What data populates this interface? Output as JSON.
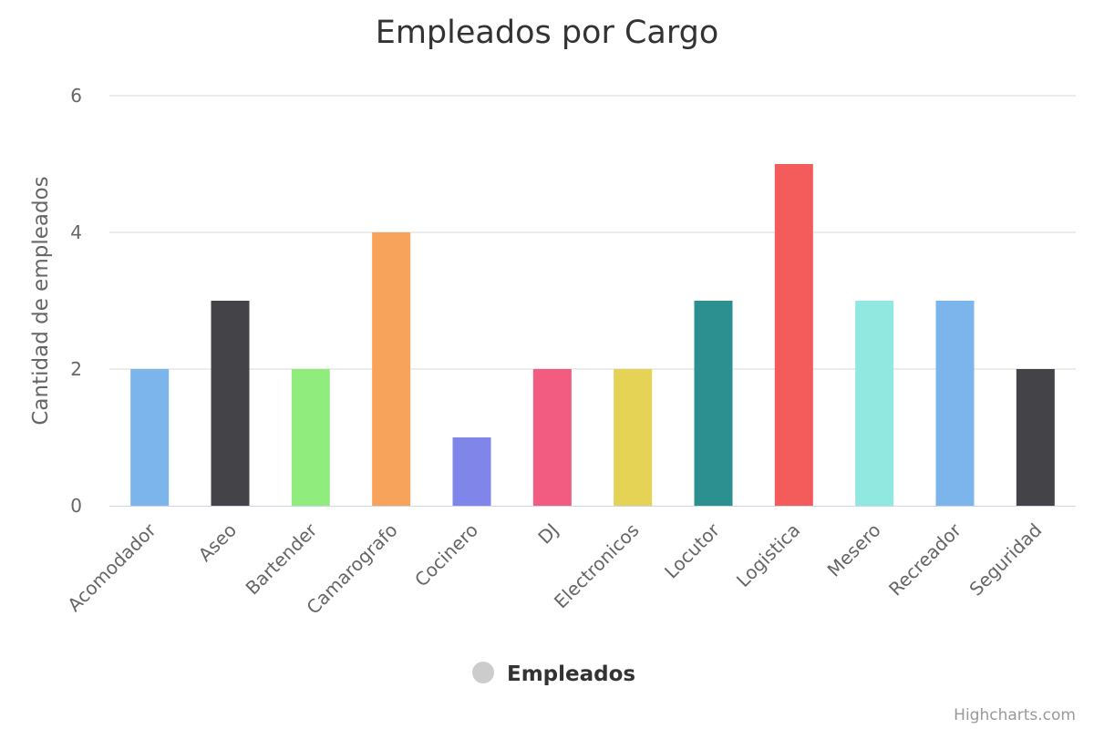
{
  "chart_data": {
    "type": "bar",
    "title": "Empleados por Cargo",
    "ylabel": "Cantidad de empleados",
    "xlabel": "",
    "ylim": [
      0,
      6
    ],
    "yticks": [
      0,
      2,
      4,
      6
    ],
    "grid": true,
    "legend_position": "bottom-center",
    "categories": [
      "Acomodador",
      "Aseo",
      "Bartender",
      "Camarografo",
      "Cocinero",
      "DJ",
      "Electronicos",
      "Locutor",
      "Logistica",
      "Mesero",
      "Recreador",
      "Seguridad"
    ],
    "series": [
      {
        "name": "Empleados",
        "values": [
          2,
          3,
          2,
          4,
          1,
          2,
          2,
          3,
          5,
          3,
          3,
          2
        ]
      }
    ],
    "colors": [
      "#7cb5ec",
      "#434348",
      "#90ed7d",
      "#f7a35c",
      "#8085e9",
      "#f15c80",
      "#e4d354",
      "#2b908f",
      "#f45b5b",
      "#91e8e1",
      "#7cb5ec",
      "#434348"
    ],
    "legend_marker_color": "#cccccc"
  },
  "credits": "Highcharts.com"
}
